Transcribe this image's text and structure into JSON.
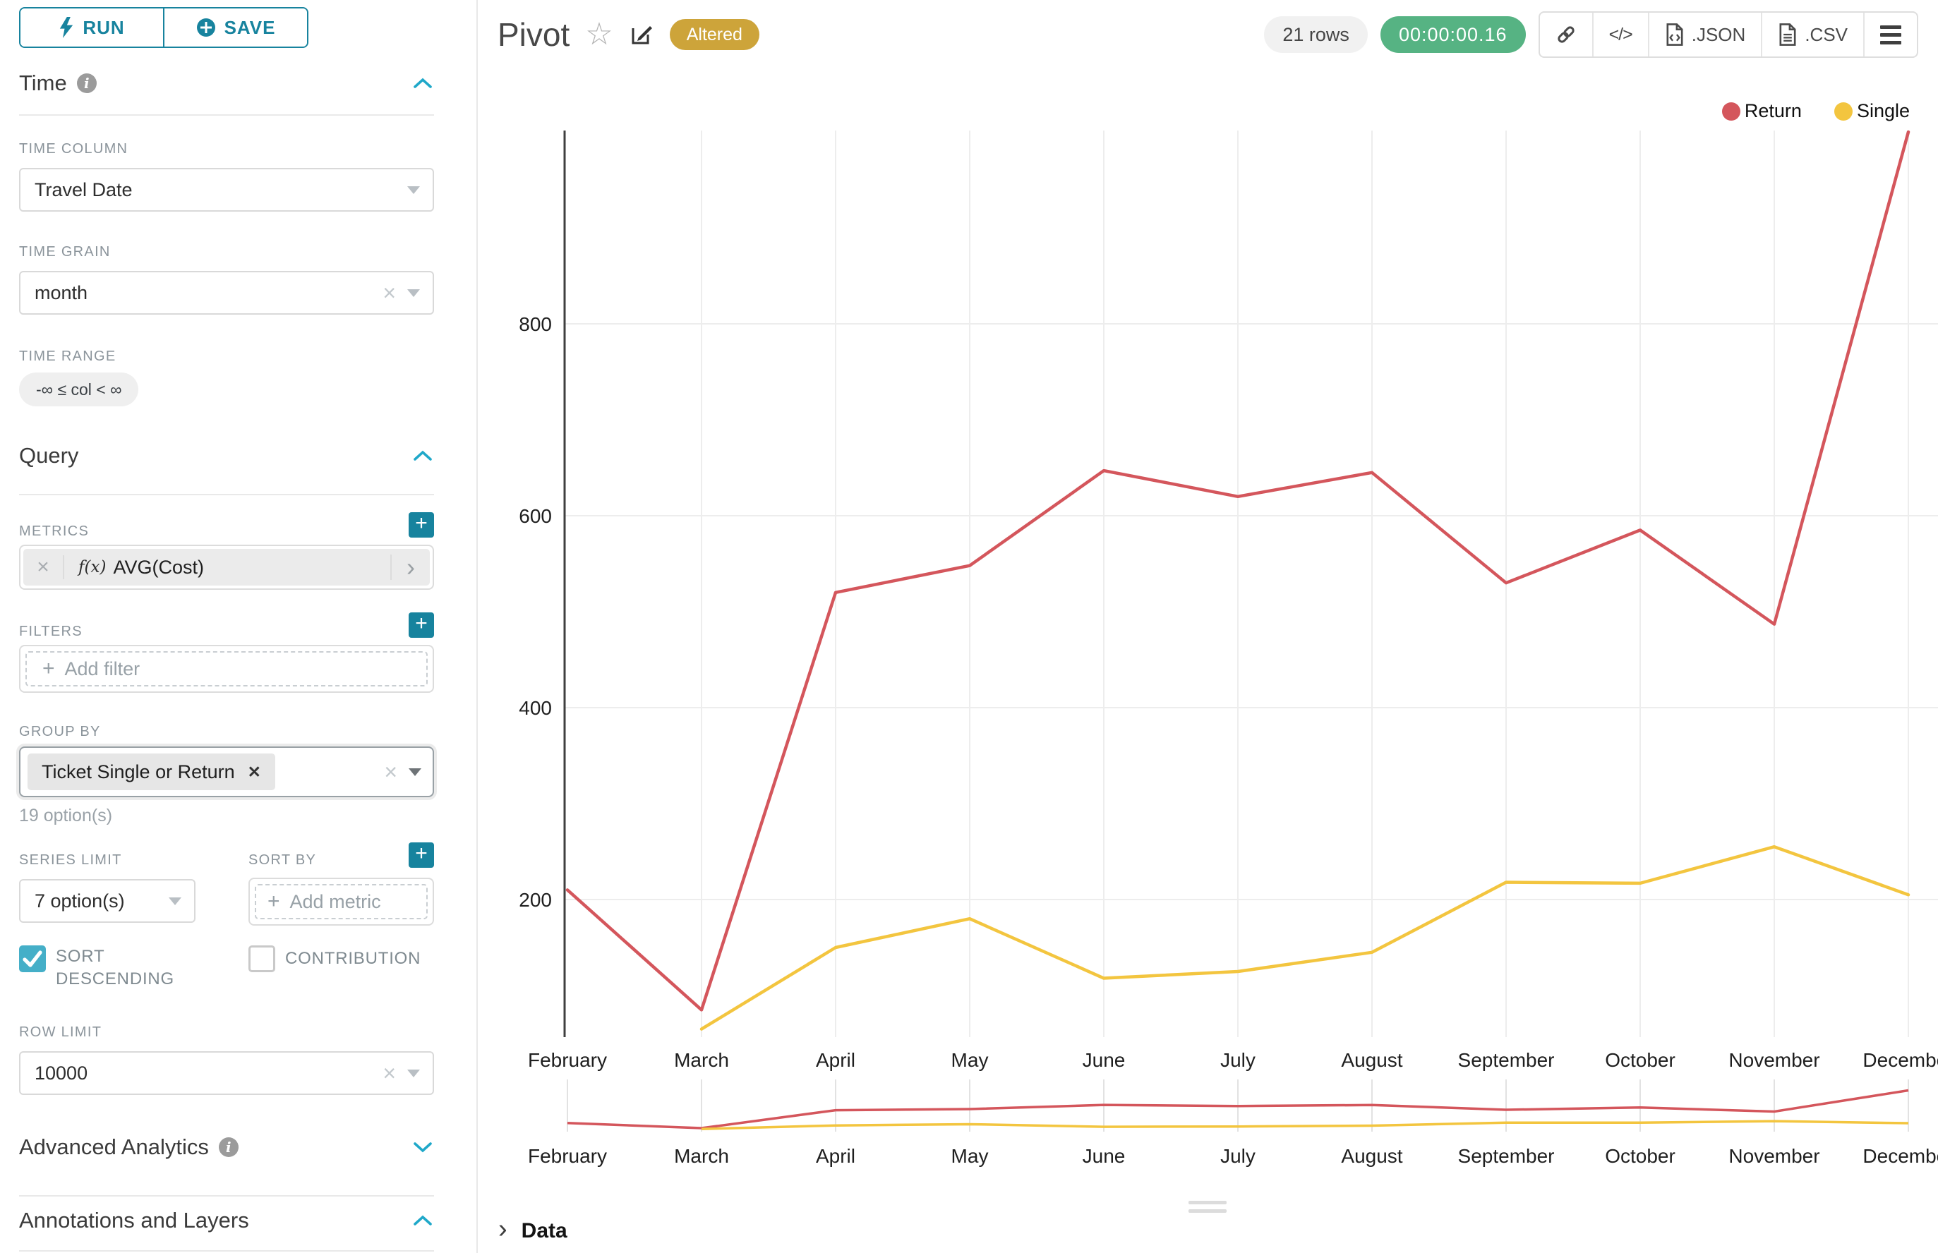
{
  "colors": {
    "accent_teal": "#17839e",
    "caret_blue": "#1fa8c9",
    "checkbox_teal": "#45afc8",
    "badge_gold": "#cda43a",
    "badge_green": "#56b383",
    "series_return": "#d4565c",
    "series_single": "#f3c53f"
  },
  "toolbar": {
    "run": "RUN",
    "save": "SAVE"
  },
  "sidebar": {
    "time": {
      "title": "Time",
      "time_column_label": "TIME COLUMN",
      "time_column_value": "Travel Date",
      "time_grain_label": "TIME GRAIN",
      "time_grain_value": "month",
      "time_range_label": "TIME RANGE",
      "time_range_value": "-∞ ≤ col < ∞"
    },
    "query": {
      "title": "Query",
      "metrics_label": "METRICS",
      "metric_prefix": "f(x)",
      "metric_name": "AVG(Cost)",
      "filters_label": "FILTERS",
      "add_filter_placeholder": "Add filter",
      "group_by_label": "GROUP BY",
      "group_by_tag": "Ticket Single or Return",
      "group_by_hint": "19 option(s)",
      "series_limit_label": "SERIES LIMIT",
      "series_limit_value": "7 option(s)",
      "sort_by_label": "SORT BY",
      "add_metric_placeholder": "Add metric",
      "sort_descending_label": "SORT DESCENDING",
      "sort_descending_checked": true,
      "contribution_label": "CONTRIBUTION",
      "contribution_checked": false,
      "row_limit_label": "ROW LIMIT",
      "row_limit_value": "10000"
    },
    "advanced_analytics_title": "Advanced Analytics",
    "annotations_title": "Annotations and Layers"
  },
  "header": {
    "title": "Pivot",
    "altered_badge": "Altered",
    "rows_badge": "21 rows",
    "timer": "00:00:00.16",
    "json_label": ".JSON",
    "csv_label": ".CSV"
  },
  "data_panel": {
    "title": "Data"
  },
  "chart_data": {
    "type": "line",
    "title": "",
    "categories": [
      "February",
      "March",
      "April",
      "May",
      "June",
      "July",
      "August",
      "September",
      "October",
      "November",
      "December"
    ],
    "series": [
      {
        "name": "Return",
        "color": "#d4565c",
        "values": [
          210,
          85,
          520,
          548,
          647,
          620,
          645,
          530,
          585,
          487,
          1000
        ]
      },
      {
        "name": "Single",
        "color": "#f3c53f",
        "values": [
          null,
          65,
          150,
          180,
          118,
          125,
          145,
          218,
          217,
          255,
          205
        ]
      }
    ],
    "xlabel": "",
    "ylabel": "",
    "yticks": [
      200,
      400,
      600,
      800
    ],
    "ylim": [
      55,
      1010
    ],
    "grid": true,
    "legend_position": "top-right",
    "has_mini_preview": true
  }
}
